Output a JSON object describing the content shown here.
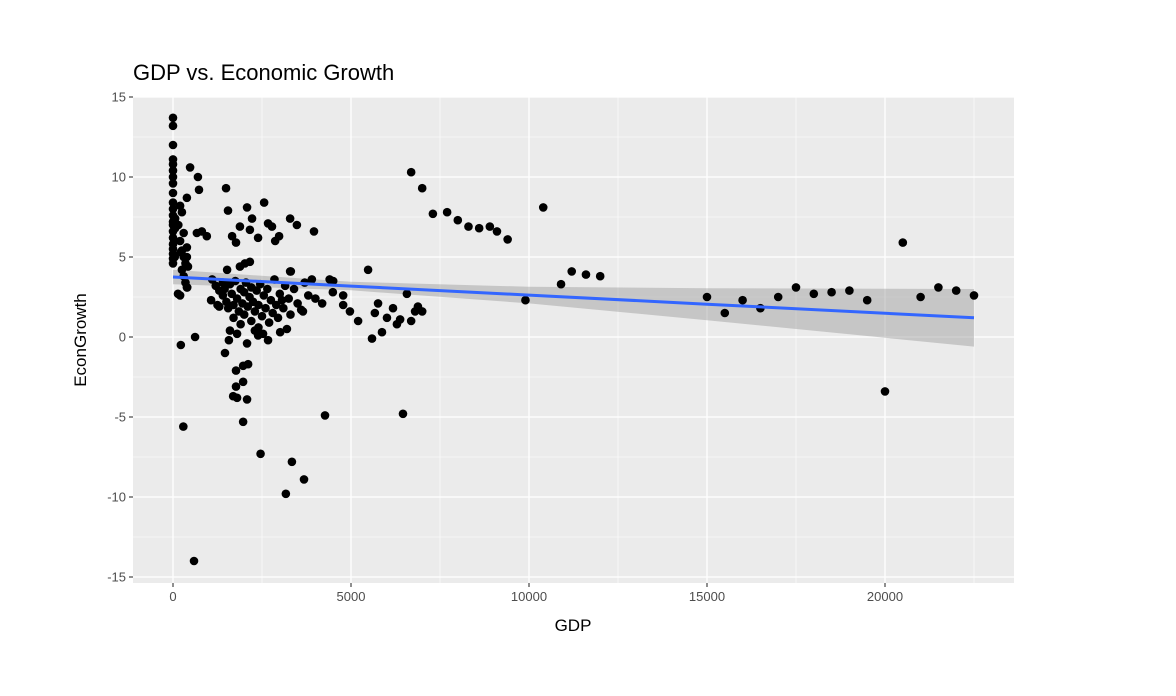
{
  "chart_data": {
    "type": "scatter",
    "title": "GDP vs. Economic Growth",
    "xlabel": "GDP",
    "ylabel": "EconGrowth",
    "xlim": [
      -1100,
      23500
    ],
    "ylim": [
      -15.4,
      15
    ],
    "xticks": [
      0,
      5000,
      10000,
      15000,
      20000
    ],
    "xtick_labels": [
      "0",
      "5000",
      "10000",
      "15000",
      "20000"
    ],
    "yticks": [
      -15,
      -10,
      -5,
      0,
      5,
      10,
      15
    ],
    "ytick_labels": [
      "-15",
      "-10",
      "-5",
      "0",
      "5",
      "10",
      "15"
    ],
    "grid": true,
    "colors": {
      "panel": "#EBEBEB",
      "grid": "#FFFFFF",
      "points": "#000000",
      "line": "#3366FF",
      "band": "#999999"
    },
    "points": [
      [
        0,
        13.7
      ],
      [
        0,
        13.2
      ],
      [
        0,
        12.0
      ],
      [
        0,
        11.1
      ],
      [
        0,
        10.8
      ],
      [
        0,
        10.4
      ],
      [
        0,
        10.0
      ],
      [
        0,
        9.6
      ],
      [
        0,
        9.0
      ],
      [
        0,
        8.4
      ],
      [
        0,
        8.0
      ],
      [
        0,
        7.6
      ],
      [
        0,
        7.2
      ],
      [
        0,
        7.0
      ],
      [
        0,
        6.6
      ],
      [
        0,
        6.2
      ],
      [
        0,
        5.8
      ],
      [
        0,
        5.5
      ],
      [
        0,
        5.2
      ],
      [
        0,
        4.9
      ],
      [
        0,
        4.6
      ],
      [
        50,
        6.0
      ],
      [
        50,
        5.0
      ],
      [
        60,
        6.8
      ],
      [
        60,
        7.4
      ],
      [
        200,
        8.2
      ],
      [
        250,
        7.8
      ],
      [
        150,
        7.0
      ],
      [
        300,
        6.5
      ],
      [
        200,
        6.0
      ],
      [
        250,
        5.4
      ],
      [
        300,
        5.0
      ],
      [
        350,
        4.6
      ],
      [
        250,
        4.2
      ],
      [
        300,
        3.8
      ],
      [
        350,
        3.4
      ],
      [
        400,
        3.1
      ],
      [
        200,
        2.6
      ],
      [
        220,
        5.3
      ],
      [
        390,
        5.6
      ],
      [
        390,
        5.0
      ],
      [
        420,
        4.4
      ],
      [
        140,
        2.7
      ],
      [
        390,
        3.1
      ],
      [
        480,
        10.6
      ],
      [
        700,
        10.0
      ],
      [
        730,
        9.2
      ],
      [
        390,
        8.7
      ],
      [
        1490,
        9.3
      ],
      [
        1545,
        7.9
      ],
      [
        2080,
        8.1
      ],
      [
        2560,
        8.4
      ],
      [
        2220,
        7.4
      ],
      [
        1880,
        6.9
      ],
      [
        2160,
        6.7
      ],
      [
        2670,
        7.1
      ],
      [
        2780,
        6.9
      ],
      [
        3290,
        7.4
      ],
      [
        3480,
        7.0
      ],
      [
        3960,
        6.6
      ],
      [
        670,
        6.5
      ],
      [
        810,
        6.6
      ],
      [
        950,
        6.3
      ],
      [
        1660,
        6.3
      ],
      [
        1770,
        5.9
      ],
      [
        2390,
        6.2
      ],
      [
        2870,
        6.0
      ],
      [
        2980,
        6.3
      ],
      [
        1520,
        4.2
      ],
      [
        1880,
        4.4
      ],
      [
        2020,
        4.6
      ],
      [
        2160,
        4.7
      ],
      [
        3310,
        4.1
      ],
      [
        3290,
        4.1
      ],
      [
        5480,
        4.2
      ],
      [
        6690,
        10.3
      ],
      [
        7000,
        9.3
      ],
      [
        1070,
        2.3
      ],
      [
        1100,
        3.6
      ],
      [
        1200,
        3.2
      ],
      [
        1300,
        2.9
      ],
      [
        1400,
        2.6
      ],
      [
        1450,
        3.0
      ],
      [
        1500,
        2.2
      ],
      [
        1550,
        1.8
      ],
      [
        1600,
        3.3
      ],
      [
        1650,
        2.7
      ],
      [
        1700,
        2.0
      ],
      [
        1700,
        1.2
      ],
      [
        1750,
        3.5
      ],
      [
        1800,
        2.4
      ],
      [
        1850,
        1.6
      ],
      [
        1900,
        0.8
      ],
      [
        1900,
        3.0
      ],
      [
        1950,
        2.1
      ],
      [
        2000,
        1.4
      ],
      [
        2000,
        2.8
      ],
      [
        2050,
        3.4
      ],
      [
        2100,
        1.9
      ],
      [
        2150,
        2.5
      ],
      [
        2200,
        1.0
      ],
      [
        2200,
        3.1
      ],
      [
        2250,
        2.2
      ],
      [
        2300,
        1.6
      ],
      [
        2350,
        2.9
      ],
      [
        2400,
        0.6
      ],
      [
        2400,
        2.0
      ],
      [
        2450,
        3.3
      ],
      [
        2500,
        1.3
      ],
      [
        2550,
        2.6
      ],
      [
        2600,
        1.8
      ],
      [
        2650,
        3.0
      ],
      [
        2700,
        0.9
      ],
      [
        2750,
        2.3
      ],
      [
        2800,
        1.5
      ],
      [
        2850,
        3.6
      ],
      [
        2900,
        2.0
      ],
      [
        2950,
        1.2
      ],
      [
        3000,
        2.7
      ],
      [
        3100,
        1.8
      ],
      [
        3150,
        3.2
      ],
      [
        3200,
        0.5
      ],
      [
        3250,
        2.4
      ],
      [
        3300,
        1.4
      ],
      [
        3400,
        3.0
      ],
      [
        3500,
        2.1
      ],
      [
        3600,
        1.7
      ],
      [
        3700,
        3.4
      ],
      [
        3800,
        2.6
      ],
      [
        3900,
        3.6
      ],
      [
        4000,
        2.4
      ],
      [
        1300,
        1.9
      ],
      [
        1400,
        3.4
      ],
      [
        1600,
        0.4
      ],
      [
        1800,
        0.2
      ],
      [
        2300,
        0.4
      ],
      [
        1250,
        2.0
      ],
      [
        3060,
        2.3
      ],
      [
        3650,
        1.6
      ],
      [
        4190,
        2.1
      ],
      [
        4490,
        2.8
      ],
      [
        4780,
        2.6
      ],
      [
        4780,
        2.0
      ],
      [
        4970,
        1.6
      ],
      [
        5200,
        1.0
      ],
      [
        5590,
        -0.1
      ],
      [
        5670,
        1.5
      ],
      [
        5760,
        2.1
      ],
      [
        5870,
        0.3
      ],
      [
        6010,
        1.2
      ],
      [
        6180,
        1.8
      ],
      [
        6290,
        0.8
      ],
      [
        6380,
        1.1
      ],
      [
        6690,
        1.0
      ],
      [
        6800,
        1.6
      ],
      [
        6880,
        1.9
      ],
      [
        7000,
        1.6
      ],
      [
        6570,
        2.7
      ],
      [
        4400,
        3.6
      ],
      [
        4500,
        3.5
      ],
      [
        4270,
        -4.9
      ],
      [
        6460,
        -4.8
      ],
      [
        290,
        -5.6
      ],
      [
        220,
        -0.5
      ],
      [
        620,
        0.0
      ],
      [
        1570,
        -0.2
      ],
      [
        1460,
        -1.0
      ],
      [
        2080,
        -0.4
      ],
      [
        2390,
        0.1
      ],
      [
        2530,
        0.2
      ],
      [
        2670,
        -0.2
      ],
      [
        3010,
        0.3
      ],
      [
        1770,
        -2.1
      ],
      [
        1970,
        -1.8
      ],
      [
        2110,
        -1.7
      ],
      [
        1770,
        -3.1
      ],
      [
        1970,
        -2.8
      ],
      [
        1690,
        -3.7
      ],
      [
        1800,
        -3.8
      ],
      [
        2080,
        -3.9
      ],
      [
        1970,
        -5.3
      ],
      [
        2460,
        -7.3
      ],
      [
        3340,
        -7.8
      ],
      [
        3680,
        -8.9
      ],
      [
        3170,
        -9.8
      ],
      [
        590,
        -14.0
      ],
      [
        7300,
        7.7
      ],
      [
        7700,
        7.8
      ],
      [
        8000,
        7.3
      ],
      [
        8300,
        6.9
      ],
      [
        8600,
        6.8
      ],
      [
        8900,
        6.9
      ],
      [
        9100,
        6.6
      ],
      [
        9400,
        6.1
      ],
      [
        10400,
        8.1
      ],
      [
        9900,
        2.3
      ],
      [
        10900,
        3.3
      ],
      [
        11200,
        4.1
      ],
      [
        11600,
        3.9
      ],
      [
        12000,
        3.8
      ],
      [
        15000,
        2.5
      ],
      [
        15500,
        1.5
      ],
      [
        16000,
        2.3
      ],
      [
        16500,
        1.8
      ],
      [
        17000,
        2.5
      ],
      [
        17500,
        3.1
      ],
      [
        18000,
        2.7
      ],
      [
        18500,
        2.8
      ],
      [
        19000,
        2.9
      ],
      [
        19500,
        2.3
      ],
      [
        20000,
        -3.4
      ],
      [
        20500,
        5.9
      ],
      [
        21000,
        2.5
      ],
      [
        21500,
        3.1
      ],
      [
        22000,
        2.9
      ],
      [
        22500,
        2.6
      ]
    ],
    "smooth": {
      "method": "lm",
      "x": [
        0,
        5000,
        10000,
        15000,
        22500
      ],
      "fit": [
        3.75,
        3.18,
        2.62,
        2.05,
        1.2
      ],
      "lower": [
        3.3,
        2.92,
        2.1,
        1.05,
        -0.6
      ],
      "upper": [
        4.2,
        3.45,
        3.14,
        3.05,
        3.0
      ]
    }
  }
}
